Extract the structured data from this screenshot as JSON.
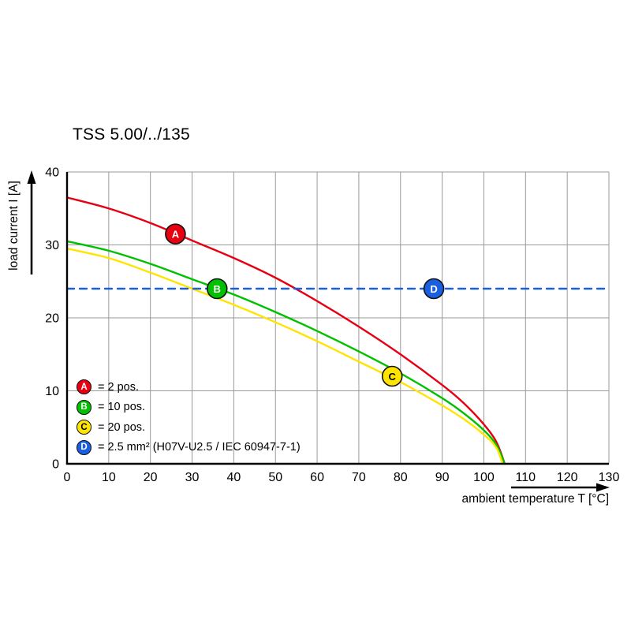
{
  "chart_data": {
    "type": "line",
    "title": "TSS 5.00/../135",
    "xlabel": "ambient temperature T [°C]",
    "ylabel": "load current I [A]",
    "xlim": [
      0,
      130
    ],
    "ylim": [
      0,
      40
    ],
    "xticks": [
      0,
      10,
      20,
      30,
      40,
      50,
      60,
      70,
      80,
      90,
      100,
      110,
      120,
      130
    ],
    "yticks": [
      0,
      10,
      20,
      30,
      40
    ],
    "grid": true,
    "grid_color": "#999999",
    "axis_color": "#000000",
    "legend_position": "bottom-left-inside",
    "series": [
      {
        "id": "A",
        "legend_label": "= 2 pos.",
        "color": "#e60012",
        "letter_color": "#ffffff",
        "line_style": "solid",
        "marker_at": {
          "x": 26,
          "y": 31.5
        },
        "points": [
          [
            0,
            36.5
          ],
          [
            10,
            35.0
          ],
          [
            20,
            33.0
          ],
          [
            30,
            30.6
          ],
          [
            40,
            28.2
          ],
          [
            50,
            25.5
          ],
          [
            60,
            22.3
          ],
          [
            70,
            18.8
          ],
          [
            80,
            15.0
          ],
          [
            90,
            10.8
          ],
          [
            95,
            8.4
          ],
          [
            100,
            5.4
          ],
          [
            103,
            3.0
          ],
          [
            105,
            0
          ]
        ]
      },
      {
        "id": "B",
        "legend_label": "= 10 pos.",
        "color": "#00c000",
        "letter_color": "#ffffff",
        "line_style": "solid",
        "marker_at": {
          "x": 36,
          "y": 24
        },
        "points": [
          [
            0,
            30.5
          ],
          [
            10,
            29.2
          ],
          [
            20,
            27.4
          ],
          [
            30,
            25.3
          ],
          [
            40,
            23.2
          ],
          [
            50,
            20.8
          ],
          [
            60,
            18.2
          ],
          [
            70,
            15.4
          ],
          [
            80,
            12.4
          ],
          [
            90,
            9.0
          ],
          [
            95,
            7.0
          ],
          [
            100,
            4.6
          ],
          [
            103,
            2.6
          ],
          [
            105,
            0
          ]
        ]
      },
      {
        "id": "C",
        "legend_label": "= 20 pos.",
        "color": "#ffe400",
        "letter_color": "#000000",
        "line_style": "solid",
        "marker_at": {
          "x": 78,
          "y": 12
        },
        "points": [
          [
            0,
            29.5
          ],
          [
            10,
            28.2
          ],
          [
            20,
            26.2
          ],
          [
            30,
            24.0
          ],
          [
            40,
            21.8
          ],
          [
            50,
            19.4
          ],
          [
            60,
            16.8
          ],
          [
            70,
            14.0
          ],
          [
            80,
            11.2
          ],
          [
            90,
            8.0
          ],
          [
            95,
            6.2
          ],
          [
            100,
            4.0
          ],
          [
            103,
            2.2
          ],
          [
            104.5,
            0
          ]
        ]
      },
      {
        "id": "D",
        "legend_label": "= 2.5 mm² (H07V-U2.5 / IEC 60947-7-1)",
        "color": "#1a5fe0",
        "letter_color": "#ffffff",
        "line_style": "dashed",
        "marker_at": {
          "x": 88,
          "y": 24
        },
        "points": [
          [
            0,
            24
          ],
          [
            130,
            24
          ]
        ]
      }
    ]
  }
}
